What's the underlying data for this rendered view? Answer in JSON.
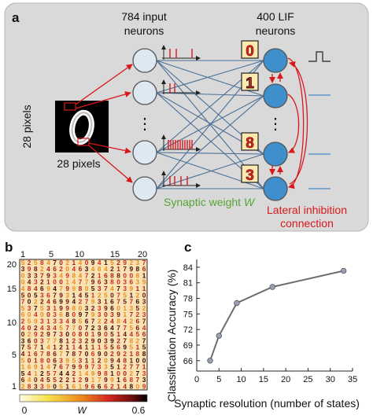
{
  "panel_a": {
    "label": "a",
    "input_title_line1": "784 input",
    "input_title_line2": "neurons",
    "lif_title_line1": "400 LIF",
    "lif_title_line2": "neurons",
    "pixels_vertical": "28 pixels",
    "pixels_horizontal": "28 pixels",
    "ellipsis": "⋮",
    "synaptic_weight_text": "Synaptic weight ",
    "synaptic_weight_symbol": "W",
    "lateral_line1": "Lateral inhibition",
    "lateral_line2": "connection",
    "digit_glyphs": [
      "0",
      "1",
      "8",
      "3"
    ],
    "colors": {
      "panel_bg": "#d9d9d9",
      "input_neuron": "#dde8f2",
      "lif_neuron": "#3e8fcb",
      "synapse": "#4a6f95",
      "red": "#d7191c",
      "green": "#55a532"
    }
  },
  "panel_b": {
    "label": "b",
    "top_ticks": [
      "1",
      "5",
      "10",
      "15",
      "20"
    ],
    "left_ticks": [
      "20",
      "15",
      "10",
      "5",
      "1"
    ],
    "colorbar_min": "0",
    "colorbar_symbol": "W",
    "colorbar_max": "0.6",
    "colormap": [
      "#fffbe6",
      "#f6e24a",
      "#ee8a1e",
      "#d2261f",
      "#6d0e0c",
      "#000000"
    ]
  },
  "panel_c": {
    "label": "c",
    "chart_data": {
      "type": "line",
      "x": [
        3,
        5,
        9,
        17,
        33
      ],
      "values": [
        66.0,
        70.8,
        77.1,
        80.2,
        83.3
      ],
      "xlabel": "Synaptic resolution (number of states)",
      "ylabel": "Classification Accuracy (%)",
      "xlim": [
        0,
        35
      ],
      "ylim": [
        64,
        85.5
      ],
      "xticks": [
        0,
        5,
        10,
        15,
        20,
        25,
        30,
        35
      ],
      "yticks": [
        66,
        69,
        72,
        75,
        78,
        81,
        84
      ],
      "grid": false,
      "line_color": "#6d6d6d",
      "marker_color": "#9aa2b8"
    }
  }
}
